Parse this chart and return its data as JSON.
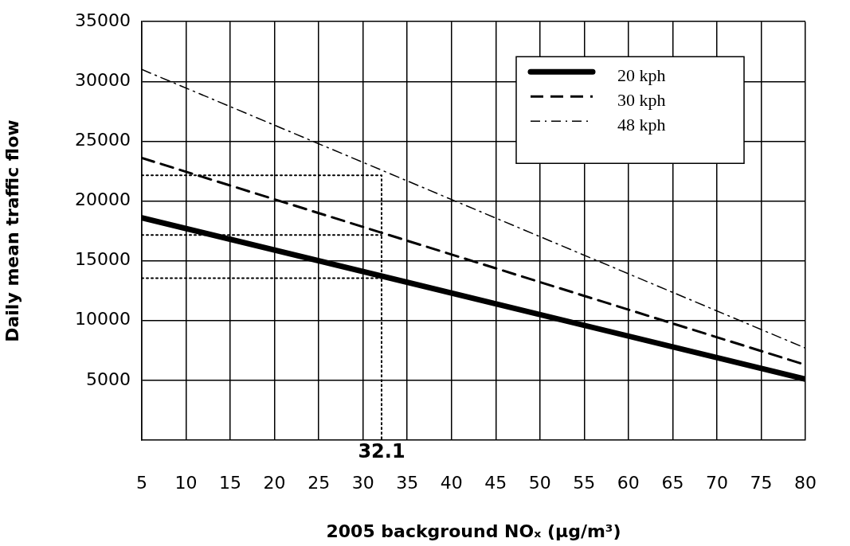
{
  "chart_data": {
    "type": "line",
    "xlabel": "2005 background NOₓ (μg/m³)",
    "ylabel": "Daily mean traffic flow",
    "xlim": [
      5,
      80
    ],
    "xticks": [
      5,
      10,
      15,
      20,
      25,
      30,
      35,
      40,
      45,
      50,
      55,
      60,
      65,
      70,
      75,
      80
    ],
    "ylim": [
      0,
      35000
    ],
    "yticks": [
      5000,
      10000,
      15000,
      20000,
      25000,
      30000,
      35000
    ],
    "grid": true,
    "legend": "top right",
    "marker": "none",
    "series": [
      {
        "name": "20 kph",
        "color": "#000000",
        "line_style": "solid",
        "x": [
          5,
          80
        ],
        "values": [
          18600,
          5100
        ]
      },
      {
        "name": "30 kph",
        "color": "#000000",
        "line_style": "dashed",
        "x": [
          5,
          80
        ],
        "values": [
          23600,
          6300
        ]
      },
      {
        "name": "48 kph",
        "color": "#000000",
        "line_style": "dashdot",
        "x": [
          5,
          80
        ],
        "values": [
          31000,
          7700
        ]
      },
      {
        "color": "#000000",
        "line_style": "dotted",
        "x": [
          5,
          32.1,
          32.1
        ],
        "values": [
          22150,
          22150,
          0
        ]
      },
      {
        "color": "#000000",
        "line_style": "dotted",
        "x": [
          5,
          32.1
        ],
        "values": [
          17150,
          17150
        ]
      },
      {
        "color": "#000000",
        "line_style": "dotted",
        "x": [
          5,
          32.1
        ],
        "values": [
          13550,
          13550
        ]
      }
    ],
    "annotations": [
      {
        "text": "32.1",
        "x": 32.1,
        "y": 0
      }
    ]
  }
}
